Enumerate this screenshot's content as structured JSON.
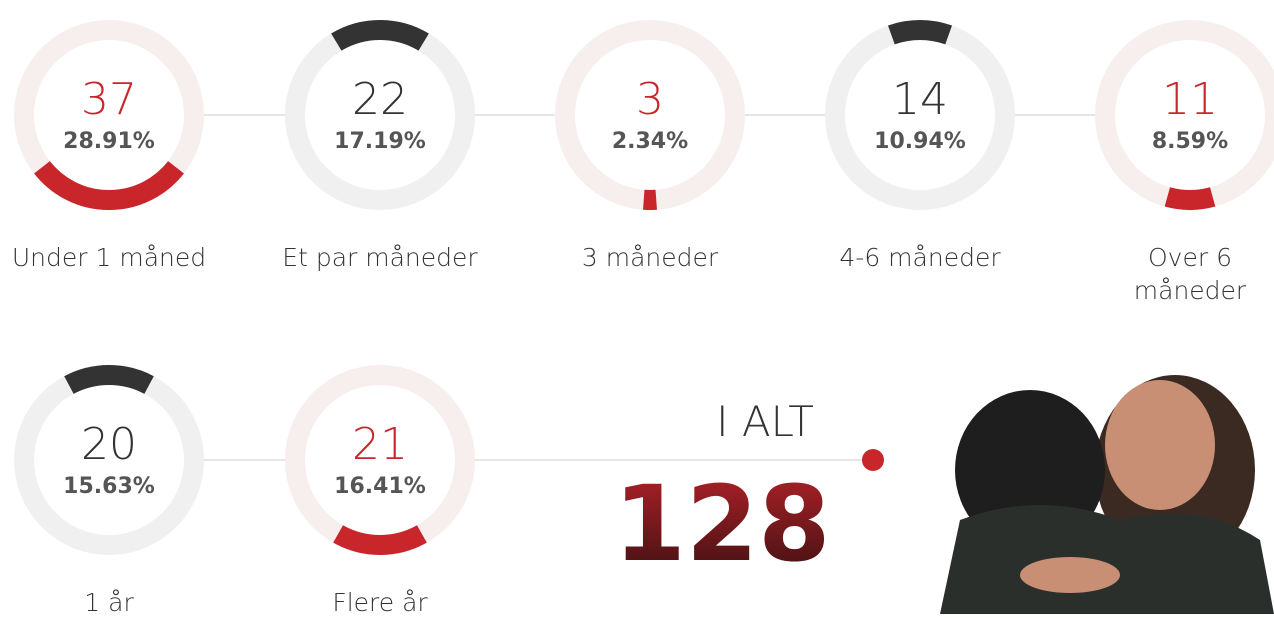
{
  "chart_data": {
    "type": "gauge",
    "categories": [
      "Under 1 måned",
      "Et par måneder",
      "3 måneder",
      "4-6 måneder",
      "Over 6 måneder",
      "1 år",
      "Flere år"
    ],
    "values": [
      37,
      22,
      3,
      14,
      11,
      20,
      21
    ],
    "percents": [
      28.91,
      17.19,
      2.34,
      10.94,
      8.59,
      15.63,
      16.41
    ],
    "percent_labels": [
      "28.91%",
      "17.19%",
      "2.34%",
      "10.94%",
      "8.59%",
      "15.63%",
      "16.41%"
    ],
    "colors": [
      "#c8262b",
      "#333333",
      "#c8262b",
      "#333333",
      "#c8262b",
      "#333333",
      "#c8262b"
    ],
    "total_label": "I ALT",
    "total": 128
  }
}
